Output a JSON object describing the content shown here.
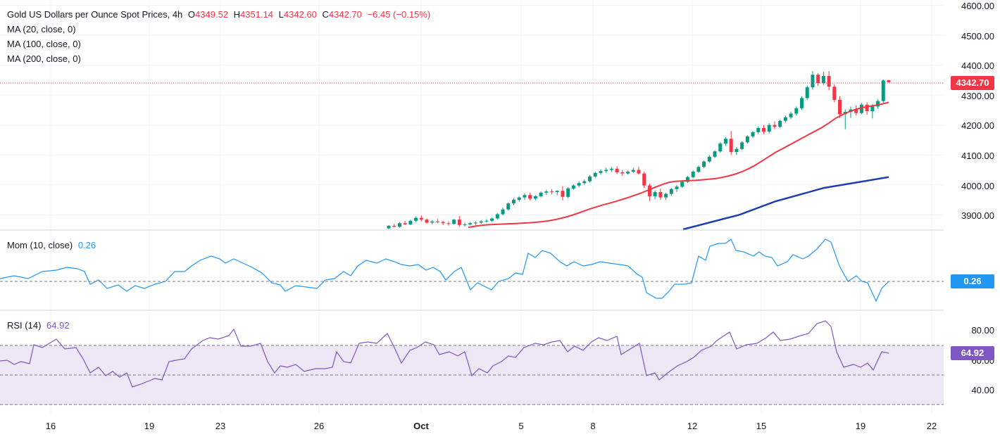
{
  "header": {
    "title": "Gold US Dollars per Ounce Spot Prices, 4h",
    "open_label": "O",
    "open": "4349.52",
    "high_label": "H",
    "high": "4351.14",
    "low_label": "L",
    "low": "4342.60",
    "close_label": "C",
    "close": "4342.70",
    "change": "−6.45 (−0.15%)",
    "ma1": "MA (20, close, 0)",
    "ma2": "MA (100, close, 0)",
    "ma3": "MA (200, close, 0)"
  },
  "price_axis": {
    "ticks": [
      "4600.00",
      "4500.00",
      "4400.00",
      "4300.00",
      "4200.00",
      "4100.00",
      "4000.00",
      "3900.00"
    ],
    "last_price": "4342.70"
  },
  "momentum": {
    "label": "Mom (10, close)",
    "value": "0.26",
    "tag": "0.26"
  },
  "rsi": {
    "label": "RSI (14)",
    "value": "64.92",
    "tag": "64.92",
    "ticks": [
      "80.00",
      "60.00",
      "40.00"
    ]
  },
  "time_axis": {
    "labels": [
      "16",
      "19",
      "23",
      "26",
      "Oct",
      "5",
      "8",
      "12",
      "15",
      "19",
      "22"
    ]
  },
  "colors": {
    "up": "#089981",
    "down": "#f23645",
    "ma20": "#f23645",
    "ma200": "#1e40af",
    "mom": "#2196f3",
    "rsi": "#7e57c2",
    "rsi_band": "#ede7f6"
  },
  "chart_data": {
    "type": "candlestick",
    "title": "Gold US Dollars per Ounce Spot Prices, 4h",
    "ylim": [
      3860,
      4620
    ],
    "last_close": 4342.7,
    "candles_visible_from": "Sep 29",
    "candles": [
      [
        3855,
        3866,
        3850,
        3863
      ],
      [
        3863,
        3870,
        3858,
        3860
      ],
      [
        3860,
        3876,
        3857,
        3872
      ],
      [
        3872,
        3880,
        3866,
        3868
      ],
      [
        3868,
        3884,
        3865,
        3880
      ],
      [
        3880,
        3895,
        3876,
        3890
      ],
      [
        3890,
        3898,
        3878,
        3884
      ],
      [
        3884,
        3888,
        3870,
        3874
      ],
      [
        3874,
        3882,
        3868,
        3878
      ],
      [
        3878,
        3886,
        3872,
        3876
      ],
      [
        3876,
        3880,
        3866,
        3872
      ],
      [
        3872,
        3878,
        3864,
        3870
      ],
      [
        3870,
        3886,
        3868,
        3884
      ],
      [
        3884,
        3896,
        3860,
        3866
      ],
      [
        3866,
        3874,
        3860,
        3868
      ],
      [
        3868,
        3876,
        3864,
        3872
      ],
      [
        3872,
        3878,
        3866,
        3874
      ],
      [
        3874,
        3882,
        3870,
        3878
      ],
      [
        3878,
        3886,
        3874,
        3880
      ],
      [
        3880,
        3890,
        3876,
        3888
      ],
      [
        3888,
        3906,
        3884,
        3902
      ],
      [
        3902,
        3924,
        3898,
        3918
      ],
      [
        3918,
        3942,
        3914,
        3938
      ],
      [
        3938,
        3956,
        3932,
        3950
      ],
      [
        3950,
        3962,
        3944,
        3958
      ],
      [
        3958,
        3972,
        3950,
        3966
      ],
      [
        3966,
        3974,
        3948,
        3954
      ],
      [
        3954,
        3966,
        3948,
        3962
      ],
      [
        3962,
        3978,
        3958,
        3974
      ],
      [
        3974,
        3984,
        3966,
        3978
      ],
      [
        3978,
        3986,
        3968,
        3976
      ],
      [
        3976,
        3982,
        3966,
        3980
      ],
      [
        3980,
        3996,
        3948,
        3960
      ],
      [
        3960,
        3992,
        3956,
        3988
      ],
      [
        3988,
        4002,
        3984,
        3998
      ],
      [
        3998,
        4012,
        3992,
        4006
      ],
      [
        4006,
        4018,
        4000,
        4012
      ],
      [
        4012,
        4032,
        4008,
        4028
      ],
      [
        4028,
        4044,
        4024,
        4040
      ],
      [
        4040,
        4052,
        4034,
        4046
      ],
      [
        4046,
        4056,
        4040,
        4050
      ],
      [
        4050,
        4060,
        4044,
        4054
      ],
      [
        4054,
        4062,
        4036,
        4042
      ],
      [
        4042,
        4050,
        4030,
        4038
      ],
      [
        4038,
        4048,
        4034,
        4044
      ],
      [
        4044,
        4056,
        4040,
        4050
      ],
      [
        4050,
        4060,
        4034,
        4038
      ],
      [
        4038,
        4044,
        3990,
        3998
      ],
      [
        3998,
        4004,
        3946,
        3962
      ],
      [
        3962,
        3982,
        3952,
        3976
      ],
      [
        3976,
        3988,
        3950,
        3958
      ],
      [
        3958,
        3974,
        3950,
        3970
      ],
      [
        3970,
        3990,
        3964,
        3986
      ],
      [
        3986,
        4000,
        3976,
        3994
      ],
      [
        3994,
        4016,
        3990,
        4010
      ],
      [
        4010,
        4030,
        4006,
        4026
      ],
      [
        4026,
        4048,
        4022,
        4044
      ],
      [
        4044,
        4064,
        4040,
        4060
      ],
      [
        4060,
        4082,
        4056,
        4078
      ],
      [
        4078,
        4100,
        4074,
        4094
      ],
      [
        4094,
        4116,
        4090,
        4112
      ],
      [
        4112,
        4142,
        4108,
        4138
      ],
      [
        4138,
        4160,
        4130,
        4154
      ],
      [
        4154,
        4180,
        4100,
        4110
      ],
      [
        4110,
        4126,
        4100,
        4120
      ],
      [
        4120,
        4146,
        4116,
        4142
      ],
      [
        4142,
        4166,
        4138,
        4162
      ],
      [
        4162,
        4180,
        4156,
        4176
      ],
      [
        4176,
        4196,
        4170,
        4190
      ],
      [
        4190,
        4200,
        4170,
        4178
      ],
      [
        4178,
        4206,
        4172,
        4200
      ],
      [
        4200,
        4212,
        4186,
        4194
      ],
      [
        4194,
        4218,
        4190,
        4214
      ],
      [
        4214,
        4232,
        4208,
        4226
      ],
      [
        4226,
        4244,
        4220,
        4238
      ],
      [
        4238,
        4262,
        4232,
        4256
      ],
      [
        4256,
        4296,
        4250,
        4290
      ],
      [
        4290,
        4332,
        4284,
        4326
      ],
      [
        4326,
        4380,
        4318,
        4368
      ],
      [
        4368,
        4374,
        4330,
        4340
      ],
      [
        4340,
        4378,
        4334,
        4364
      ],
      [
        4364,
        4380,
        4316,
        4328
      ],
      [
        4328,
        4336,
        4276,
        4284
      ],
      [
        4284,
        4296,
        4224,
        4236
      ],
      [
        4236,
        4252,
        4186,
        4244
      ],
      [
        4244,
        4262,
        4224,
        4252
      ],
      [
        4252,
        4266,
        4232,
        4240
      ],
      [
        4240,
        4274,
        4236,
        4268
      ],
      [
        4268,
        4276,
        4234,
        4246
      ],
      [
        4246,
        4270,
        4222,
        4262
      ],
      [
        4262,
        4286,
        4254,
        4280
      ],
      [
        4280,
        4352,
        4274,
        4349
      ],
      [
        4349.52,
        4351.14,
        4342.6,
        4342.7
      ]
    ],
    "ma20": [
      3858,
      3862,
      3865,
      3867,
      3868,
      3869,
      3870,
      3871,
      3872,
      3873,
      3875,
      3877,
      3880,
      3884,
      3889,
      3895,
      3902,
      3910,
      3918,
      3925,
      3932,
      3938,
      3944,
      3951,
      3958,
      3966,
      3974,
      3983,
      3992,
      4001,
      4008,
      4012,
      4013,
      4014,
      4015,
      4017,
      4019,
      4021,
      4025,
      4030,
      4036,
      4044,
      4054,
      4066,
      4080,
      4094,
      4108,
      4120,
      4132,
      4144,
      4156,
      4168,
      4180,
      4192,
      4206,
      4222,
      4234,
      4244,
      4252,
      4258,
      4262,
      4266,
      4270,
      4276
    ],
    "ma200": [
      3815,
      3900,
      3944,
      3990,
      4026
    ],
    "momentum_series": "10-period momentum, last 0.26",
    "rsi_last": 64.92,
    "rsi_band": [
      30,
      70
    ]
  }
}
